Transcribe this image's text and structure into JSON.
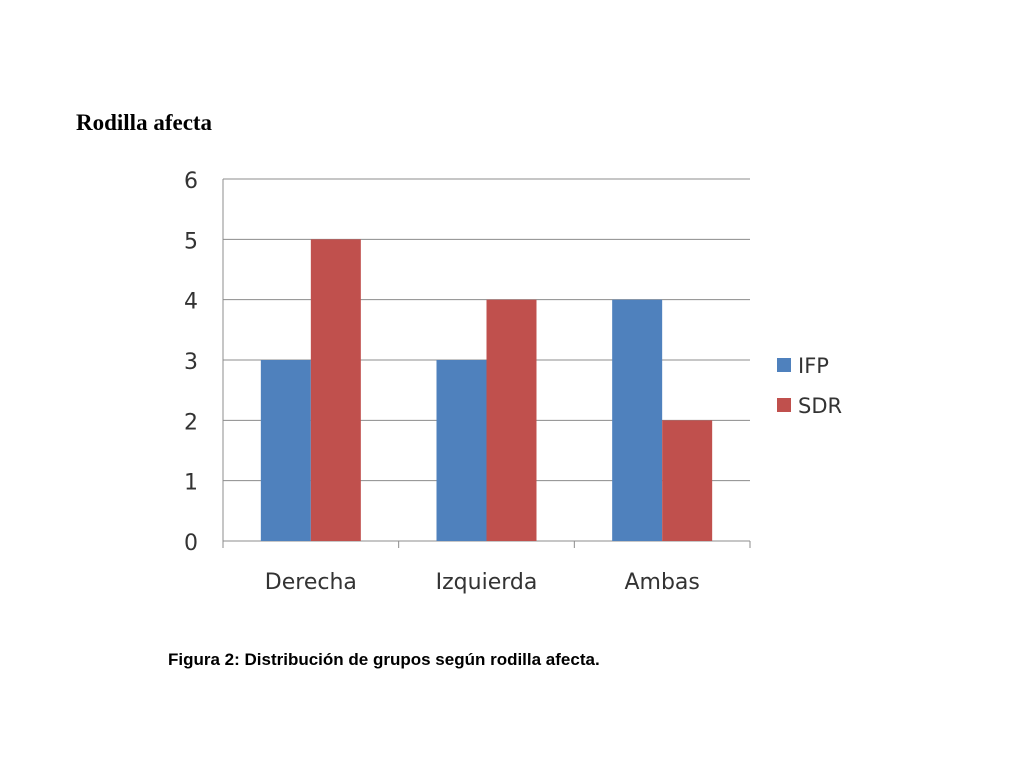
{
  "page": {
    "heading": "Rodilla afecta",
    "caption": "Figura 2: Distribución de grupos según rodilla afecta."
  },
  "chart_data": {
    "type": "bar",
    "title": "",
    "xlabel": "",
    "ylabel": "",
    "categories": [
      "Derecha",
      "Izquierda",
      "Ambas"
    ],
    "series": [
      {
        "name": "IFP",
        "values": [
          3,
          3,
          4
        ],
        "color": "#4f81bd"
      },
      {
        "name": "SDR",
        "values": [
          5,
          4,
          2
        ],
        "color": "#c0504d"
      }
    ],
    "ylim": [
      0,
      6
    ],
    "yticks": [
      0,
      1,
      2,
      3,
      4,
      5,
      6
    ],
    "grid": true,
    "legend": "right"
  }
}
